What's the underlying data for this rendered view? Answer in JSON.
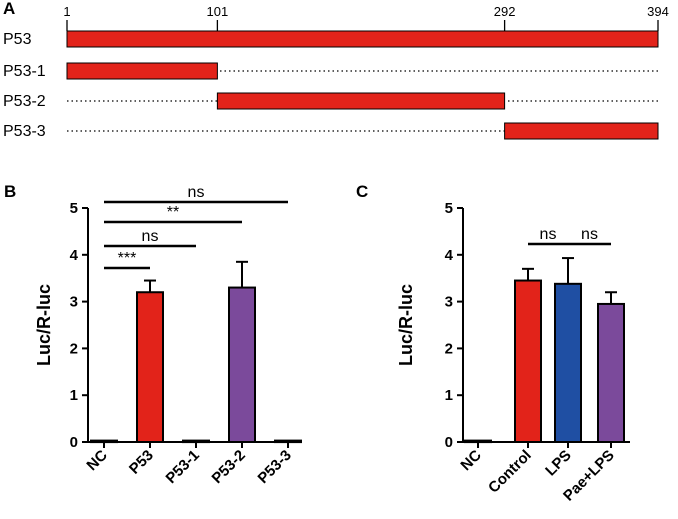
{
  "colors": {
    "red": "#e2231a",
    "blue": "#1f4fa3",
    "purple": "#7b4a9b",
    "black": "#000000"
  },
  "chart_data": [
    {
      "panel": "A",
      "type": "diagram",
      "title": "",
      "axis_ticks": [
        "1",
        "101",
        "292",
        "394"
      ],
      "tick_values": [
        1,
        101,
        292,
        394
      ],
      "rows": [
        {
          "label": "P53",
          "start": 1,
          "end": 394
        },
        {
          "label": "P53-1",
          "start": 1,
          "end": 101
        },
        {
          "label": "P53-2",
          "start": 101,
          "end": 292
        },
        {
          "label": "P53-3",
          "start": 292,
          "end": 394
        }
      ]
    },
    {
      "panel": "B",
      "type": "bar",
      "ylabel": "Luc/R-luc",
      "ylim": [
        0,
        5
      ],
      "yticks": [
        "0",
        "1",
        "2",
        "3",
        "4",
        "5"
      ],
      "categories": [
        "NC",
        "P53",
        "P53-1",
        "P53-2",
        "P53-3"
      ],
      "values": [
        0.03,
        3.2,
        0.03,
        3.3,
        0.03
      ],
      "errors": [
        0,
        0.25,
        0,
        0.55,
        0
      ],
      "bar_colors": [
        "#e2231a",
        "#e2231a",
        "#e2231a",
        "#7b4a9b",
        "#e2231a"
      ],
      "comparisons": [
        {
          "from": 0,
          "to": 1,
          "label": "***"
        },
        {
          "from": 0,
          "to": 2,
          "label": "ns"
        },
        {
          "from": 0,
          "to": 3,
          "label": "**"
        },
        {
          "from": 0,
          "to": 4,
          "label": "ns"
        }
      ]
    },
    {
      "panel": "C",
      "type": "bar",
      "ylabel": "Luc/R-luc",
      "ylim": [
        0,
        5
      ],
      "yticks": [
        "0",
        "1",
        "2",
        "3",
        "4",
        "5"
      ],
      "categories": [
        "NC",
        "Control",
        "LPS",
        "Pae+LPS"
      ],
      "values": [
        0.03,
        3.45,
        3.38,
        2.95
      ],
      "errors": [
        0,
        0.25,
        0.55,
        0.25
      ],
      "bar_colors": [
        "#e2231a",
        "#e2231a",
        "#1f4fa3",
        "#7b4a9b"
      ],
      "comparisons": [
        {
          "from": 1,
          "to": 2,
          "label": "ns"
        },
        {
          "from": 2,
          "to": 3,
          "label": "ns"
        }
      ]
    }
  ]
}
